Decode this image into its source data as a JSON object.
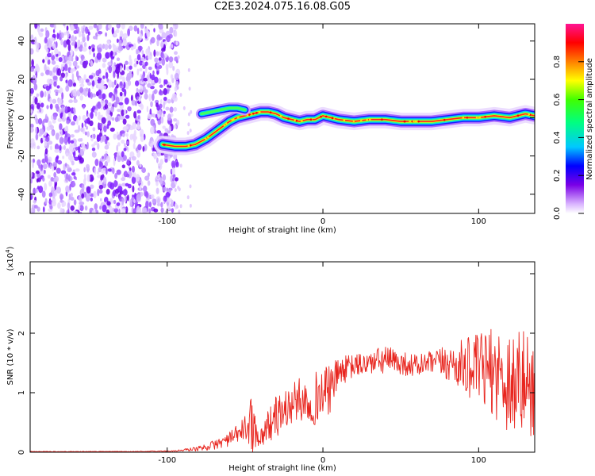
{
  "title": "C2E3.2024.075.16.08.G05",
  "chart_data": [
    {
      "type": "heatmap",
      "xlabel": "Height of straight line (km)",
      "ylabel": "Frequency (Hz)",
      "xlim": [
        -188,
        136
      ],
      "ylim": [
        -50,
        49
      ],
      "xticks": [
        -100,
        0,
        100
      ],
      "xtick_labels": [
        "-100",
        "0",
        "100"
      ],
      "yticks": [
        -40,
        -20,
        0,
        20,
        40
      ],
      "ytick_labels": [
        "-40",
        "-20",
        "0",
        "20",
        "40"
      ],
      "colorbar": {
        "label": "Normalized spectral amplitude",
        "range": [
          0,
          1
        ],
        "ticks": [
          0.0,
          0.2,
          0.4,
          0.6,
          0.8
        ],
        "tick_labels": [
          "0.0",
          "0.2",
          "0.4",
          "0.6",
          "0.8"
        ],
        "colormap": "rainbow"
      },
      "noise_region_x": [
        -188,
        -96
      ],
      "trace": {
        "x": [
          -103,
          -95,
          -88,
          -82,
          -75,
          -70,
          -65,
          -60,
          -55,
          -50,
          -45,
          -40,
          -35,
          -30,
          -25,
          -20,
          -15,
          -10,
          -5,
          0,
          10,
          20,
          30,
          40,
          50,
          60,
          70,
          80,
          90,
          100,
          110,
          120,
          130,
          136
        ],
        "freq": [
          -14,
          -15,
          -15,
          -14,
          -11,
          -8,
          -5,
          -2,
          0,
          1,
          2,
          3,
          3,
          2,
          0,
          -1,
          -2,
          -1,
          -1,
          1,
          -1,
          -2,
          -1,
          -1,
          -2,
          -2,
          -2,
          -1,
          0,
          0,
          1,
          0,
          2,
          1
        ]
      },
      "branch": {
        "x": [
          -78,
          -72,
          -66,
          -60,
          -55,
          -50
        ],
        "freq": [
          2,
          3,
          4,
          5,
          5,
          4
        ]
      }
    },
    {
      "type": "line",
      "xlabel": "Height of straight line (km)",
      "ylabel": "SNR (10 * v/v)",
      "y_multiplier": "(x10^4)",
      "xlim": [
        -188,
        136
      ],
      "ylim": [
        0,
        3.2
      ],
      "xticks": [
        -100,
        0,
        100
      ],
      "xtick_labels": [
        "-100",
        "0",
        "100"
      ],
      "yticks": [
        0,
        1,
        2,
        3
      ],
      "ytick_labels": [
        "0",
        "1",
        "2",
        "3"
      ],
      "color": "#e8251e",
      "series_profile": {
        "x": [
          -188,
          -120,
          -95,
          -80,
          -70,
          -60,
          -55,
          -50,
          -47,
          -45,
          -43,
          -40,
          -35,
          -30,
          -25,
          -20,
          -15,
          -10,
          -5,
          0,
          5,
          10,
          20,
          30,
          40,
          50,
          60,
          70,
          80,
          90,
          100,
          110,
          120,
          130,
          136
        ],
        "base": [
          0.01,
          0.01,
          0.02,
          0.06,
          0.12,
          0.22,
          0.3,
          0.4,
          0.45,
          0.6,
          0.3,
          0.25,
          0.45,
          0.6,
          0.7,
          0.8,
          0.9,
          0.85,
          0.9,
          1.0,
          1.05,
          1.35,
          1.45,
          1.5,
          1.55,
          1.5,
          1.45,
          1.5,
          1.5,
          1.45,
          1.4,
          1.35,
          1.2,
          1.15,
          1.1
        ],
        "spread": [
          0.005,
          0.005,
          0.01,
          0.04,
          0.08,
          0.12,
          0.16,
          0.22,
          0.35,
          0.6,
          0.2,
          0.15,
          0.3,
          0.35,
          0.35,
          0.35,
          0.35,
          0.4,
          0.45,
          0.45,
          0.4,
          0.25,
          0.2,
          0.2,
          0.25,
          0.2,
          0.2,
          0.2,
          0.3,
          0.45,
          0.6,
          0.75,
          0.95,
          0.9,
          0.85
        ]
      }
    }
  ]
}
